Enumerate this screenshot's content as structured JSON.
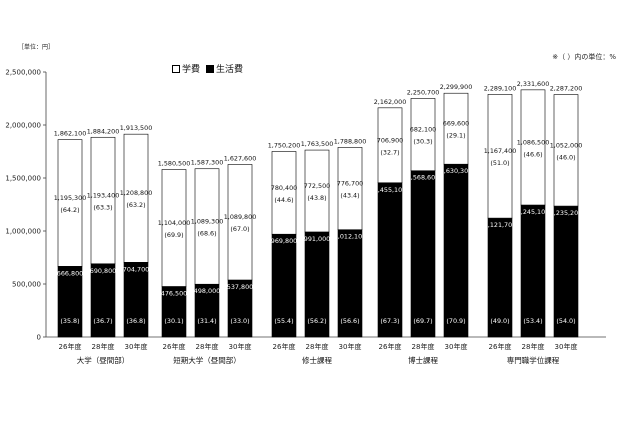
{
  "chart_data": {
    "type": "bar",
    "stacked": true,
    "unit_label": "［単位：円］",
    "note": "※（ ）内の単位：%",
    "legend": [
      {
        "name": "学費",
        "color": "#ffffff"
      },
      {
        "name": "生活費",
        "color": "#000000"
      }
    ],
    "ylim": [
      0,
      2500000
    ],
    "yticks": [
      "0",
      "500,000",
      "1,000,000",
      "1,500,000",
      "2,000,000",
      "2,500,000"
    ],
    "ytick_values": [
      0,
      500000,
      1000000,
      1500000,
      2000000,
      2500000
    ],
    "groups": [
      {
        "name": "大学（昼間部）",
        "bars": [
          {
            "year": "26年度",
            "living": 666800,
            "living_label": "666,800",
            "living_pct": "(35.8)",
            "tuition": 1195300,
            "tuition_label": "1,195,300",
            "tuition_pct": "(64.2)",
            "total_label": "1,862,100"
          },
          {
            "year": "28年度",
            "living": 690800,
            "living_label": "690,800",
            "living_pct": "(36.7)",
            "tuition": 1193400,
            "tuition_label": "1,193,400",
            "tuition_pct": "(63.3)",
            "total_label": "1,884,200"
          },
          {
            "year": "30年度",
            "living": 704700,
            "living_label": "704,700",
            "living_pct": "(36.8)",
            "tuition": 1208800,
            "tuition_label": "1,208,800",
            "tuition_pct": "(63.2)",
            "total_label": "1,913,500"
          }
        ]
      },
      {
        "name": "短期大学（昼間部）",
        "bars": [
          {
            "year": "26年度",
            "living": 476500,
            "living_label": "476,500",
            "living_pct": "(30.1)",
            "tuition": 1104000,
            "tuition_label": "1,104,000",
            "tuition_pct": "(69.9)",
            "total_label": "1,580,500"
          },
          {
            "year": "28年度",
            "living": 498000,
            "living_label": "498,000",
            "living_pct": "(31.4)",
            "tuition": 1089300,
            "tuition_label": "1,089,300",
            "tuition_pct": "(68.6)",
            "total_label": "1,587,300"
          },
          {
            "year": "30年度",
            "living": 537800,
            "living_label": "537,800",
            "living_pct": "(33.0)",
            "tuition": 1089800,
            "tuition_label": "1,089,800",
            "tuition_pct": "(67.0)",
            "total_label": "1,627,600"
          }
        ]
      },
      {
        "name": "修士課程",
        "bars": [
          {
            "year": "26年度",
            "living": 969800,
            "living_label": "969,800",
            "living_pct": "(55.4)",
            "tuition": 780400,
            "tuition_label": "780,400",
            "tuition_pct": "(44.6)",
            "total_label": "1,750,200"
          },
          {
            "year": "28年度",
            "living": 991000,
            "living_label": "991,000",
            "living_pct": "(56.2)",
            "tuition": 772500,
            "tuition_label": "772,500",
            "tuition_pct": "(43.8)",
            "total_label": "1,763,500"
          },
          {
            "year": "30年度",
            "living": 1012100,
            "living_label": "1,012,100",
            "living_pct": "(56.6)",
            "tuition": 776700,
            "tuition_label": "776,700",
            "tuition_pct": "(43.4)",
            "total_label": "1,788,800"
          }
        ]
      },
      {
        "name": "博士課程",
        "bars": [
          {
            "year": "26年度",
            "living": 1455100,
            "living_label": "1,455,100",
            "living_pct": "(67.3)",
            "tuition": 706900,
            "tuition_label": "706,900",
            "tuition_pct": "(32.7)",
            "total_label": "2,162,000"
          },
          {
            "year": "28年度",
            "living": 1568600,
            "living_label": "1,568,600",
            "living_pct": "(69.7)",
            "tuition": 682100,
            "tuition_label": "682,100",
            "tuition_pct": "(30.3)",
            "total_label": "2,250,700"
          },
          {
            "year": "30年度",
            "living": 1630300,
            "living_label": "1,630,300",
            "living_pct": "(70.9)",
            "tuition": 669600,
            "tuition_label": "669,600",
            "tuition_pct": "(29.1)",
            "total_label": "2,299,900"
          }
        ]
      },
      {
        "name": "専門職学位課程",
        "bars": [
          {
            "year": "26年度",
            "living": 1121700,
            "living_label": "1,121,700",
            "living_pct": "(49.0)",
            "tuition": 1167400,
            "tuition_label": "1,167,400",
            "tuition_pct": "(51.0)",
            "total_label": "2,289,100"
          },
          {
            "year": "28年度",
            "living": 1245100,
            "living_label": "1,245,100",
            "living_pct": "(53.4)",
            "tuition": 1086500,
            "tuition_label": "1,086,500",
            "tuition_pct": "(46.6)",
            "total_label": "2,331,600"
          },
          {
            "year": "30年度",
            "living": 1235200,
            "living_label": "1,235,200",
            "living_pct": "(54.0)",
            "tuition": 1052000,
            "tuition_label": "1,052,000",
            "tuition_pct": "(46.0)",
            "total_label": "2,287,200"
          }
        ]
      }
    ]
  }
}
